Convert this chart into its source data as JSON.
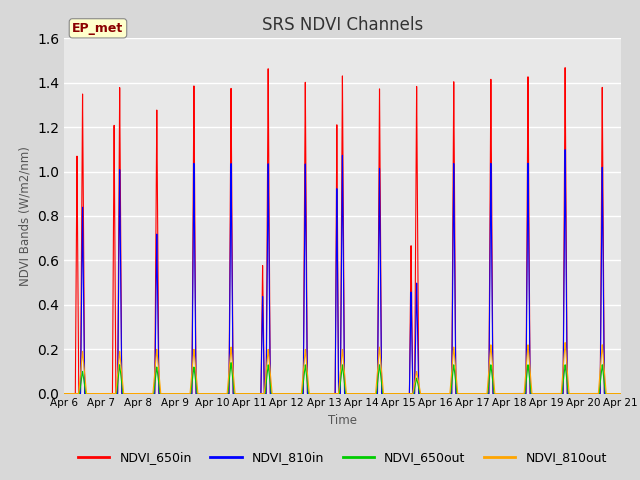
{
  "title": "SRS NDVI Channels",
  "ylabel": "NDVI Bands (W/m2/nm)",
  "xlabel": "Time",
  "annotation": "EP_met",
  "ylim": [
    0.0,
    1.6
  ],
  "fig_bg_color": "#d8d8d8",
  "plot_bg_color": "#e8e8e8",
  "series": {
    "NDVI_650in": {
      "color": "#ff0000",
      "linewidth": 1.0
    },
    "NDVI_810in": {
      "color": "#0000ff",
      "linewidth": 1.0
    },
    "NDVI_650out": {
      "color": "#00cc00",
      "linewidth": 1.0
    },
    "NDVI_810out": {
      "color": "#ffa500",
      "linewidth": 1.0
    }
  },
  "xtick_labels": [
    "Apr 6",
    "Apr 7",
    "Apr 8",
    "Apr 9",
    "Apr 10",
    "Apr 11",
    "Apr 12",
    "Apr 13",
    "Apr 14",
    "Apr 15",
    "Apr 16",
    "Apr 17",
    "Apr 18",
    "Apr 19",
    "Apr 20",
    "Apr 21"
  ],
  "yticks": [
    0.0,
    0.2,
    0.4,
    0.6,
    0.8,
    1.0,
    1.2,
    1.4,
    1.6
  ],
  "days": 15,
  "ppd": 1440,
  "peaks": {
    "650in": [
      1.35,
      1.38,
      1.28,
      1.39,
      1.38,
      1.47,
      1.41,
      1.44,
      1.38,
      1.39,
      1.41,
      1.42,
      1.43,
      1.47,
      1.38
    ],
    "810in": [
      0.84,
      1.01,
      0.72,
      1.04,
      1.04,
      1.04,
      1.04,
      1.08,
      1.02,
      0.5,
      1.04,
      1.04,
      1.04,
      1.1,
      1.02
    ],
    "650out": [
      0.1,
      0.13,
      0.12,
      0.12,
      0.14,
      0.13,
      0.13,
      0.13,
      0.13,
      0.07,
      0.13,
      0.13,
      0.13,
      0.13,
      0.13
    ],
    "810out": [
      0.19,
      0.19,
      0.2,
      0.2,
      0.21,
      0.2,
      0.2,
      0.2,
      0.21,
      0.1,
      0.21,
      0.22,
      0.22,
      0.23,
      0.22
    ]
  },
  "secondary_650in": [
    1.07,
    1.21,
    null,
    null,
    null,
    0.58,
    null,
    1.22,
    null,
    0.67,
    null,
    null,
    null,
    null,
    null
  ],
  "secondary_810in": [
    null,
    null,
    null,
    null,
    null,
    0.44,
    null,
    0.93,
    null,
    0.46,
    null,
    null,
    null,
    null,
    null
  ]
}
